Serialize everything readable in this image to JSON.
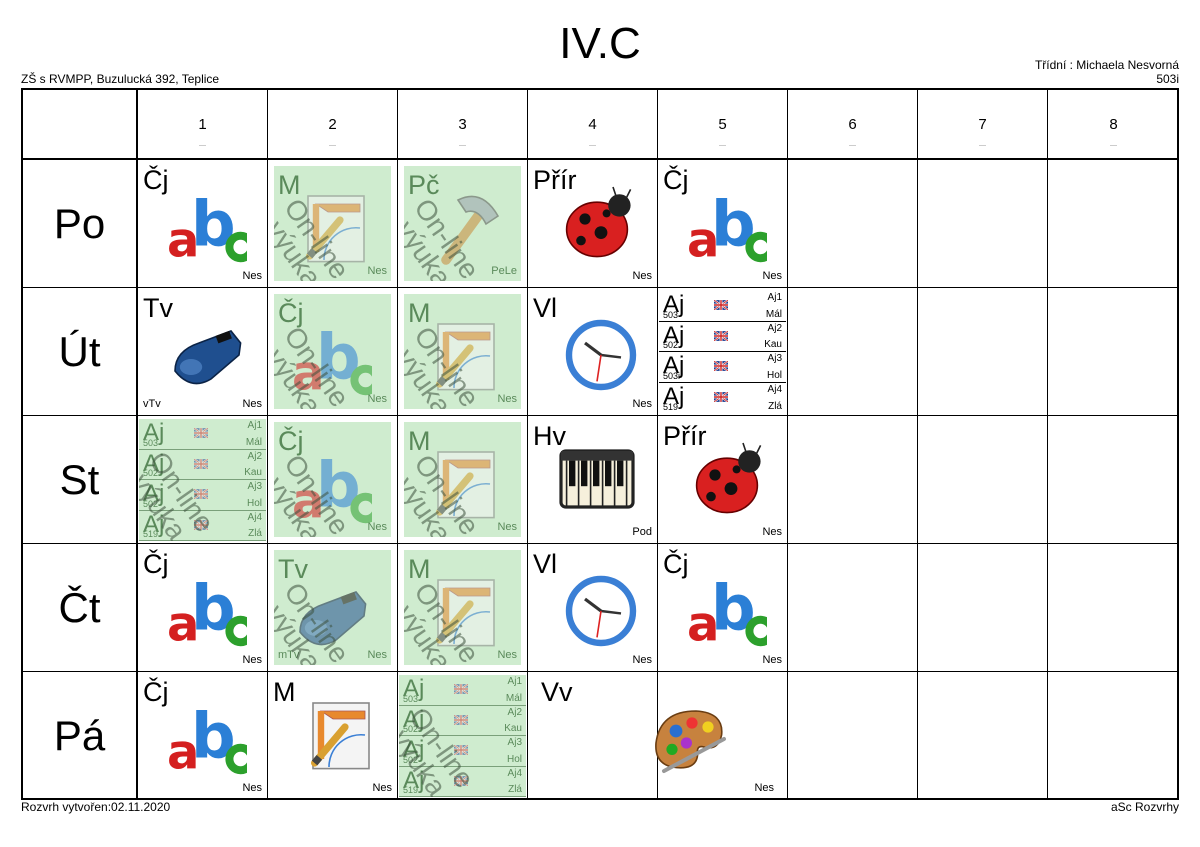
{
  "header": {
    "title": "IV.C",
    "school": "ZŠ s RVMPP, Buzulucká 392, Teplice",
    "teacher_line": "Třídní : Michaela Nesvorná",
    "room": "503i"
  },
  "footer": {
    "created": "Rozvrh vytvořen:02.11.2020",
    "software": "aSc Rozvrhy"
  },
  "periods": [
    "1",
    "2",
    "3",
    "4",
    "5",
    "6",
    "7",
    "8"
  ],
  "period_dash": "—",
  "days": [
    "Po",
    "Út",
    "St",
    "Čt",
    "Pá"
  ],
  "watermark": {
    "line1": "On-line",
    "line2": "výuka"
  },
  "lessons": {
    "po1": {
      "subject": "Čj",
      "teacher": "Nes"
    },
    "po2": {
      "subject": "M",
      "teacher": "Nes"
    },
    "po3": {
      "subject": "Pč",
      "teacher": "PeLe"
    },
    "po4": {
      "subject": "Přír",
      "teacher": "Nes"
    },
    "po5": {
      "subject": "Čj",
      "teacher": "Nes"
    },
    "ut1": {
      "subject": "Tv",
      "teacher": "Nes",
      "group": "vTv"
    },
    "ut2": {
      "subject": "Čj",
      "teacher": "Nes"
    },
    "ut3": {
      "subject": "M",
      "teacher": "Nes"
    },
    "ut4": {
      "subject": "Vl",
      "teacher": "Nes"
    },
    "st2": {
      "subject": "Čj",
      "teacher": "Nes"
    },
    "st3": {
      "subject": "M",
      "teacher": "Nes"
    },
    "st4": {
      "subject": "Hv",
      "teacher": "Pod"
    },
    "st5": {
      "subject": "Přír",
      "teacher": "Nes"
    },
    "ct1": {
      "subject": "Čj",
      "teacher": "Nes"
    },
    "ct2": {
      "subject": "Tv",
      "teacher": "Nes",
      "group": "mTv"
    },
    "ct3": {
      "subject": "M",
      "teacher": "Nes"
    },
    "ct4": {
      "subject": "Vl",
      "teacher": "Nes"
    },
    "ct5": {
      "subject": "Čj",
      "teacher": "Nes"
    },
    "pa1": {
      "subject": "Čj",
      "teacher": "Nes"
    },
    "pa2": {
      "subject": "M",
      "teacher": "Nes"
    },
    "pa45": {
      "subject": "Vv",
      "teacher": "Nes"
    }
  },
  "split_lessons": {
    "ut5": [
      {
        "subject": "Aj",
        "room": "503",
        "group": "Aj1",
        "teacher": "Mál"
      },
      {
        "subject": "Aj",
        "room": "502",
        "group": "Aj2",
        "teacher": "Kau"
      },
      {
        "subject": "Aj",
        "room": "503i",
        "group": "Aj3",
        "teacher": "Hol"
      },
      {
        "subject": "Aj",
        "room": "519",
        "group": "Aj4",
        "teacher": "Zlá"
      }
    ],
    "st1": [
      {
        "subject": "Aj",
        "room": "503",
        "group": "Aj1",
        "teacher": "Mál"
      },
      {
        "subject": "Aj",
        "room": "502",
        "group": "Aj2",
        "teacher": "Kau"
      },
      {
        "subject": "Aj",
        "room": "502",
        "group": "Aj3",
        "teacher": "Hol"
      },
      {
        "subject": "Aj",
        "room": "519",
        "group": "Aj4",
        "teacher": "Zlá"
      }
    ],
    "pa3": [
      {
        "subject": "Aj",
        "room": "503",
        "group": "Aj1",
        "teacher": "Mál"
      },
      {
        "subject": "Aj",
        "room": "502",
        "group": "Aj2",
        "teacher": "Kau"
      },
      {
        "subject": "Aj",
        "room": "502",
        "group": "Aj3",
        "teacher": "Hol"
      },
      {
        "subject": "Aj",
        "room": "519",
        "group": "Aj4",
        "teacher": "Zlá"
      }
    ]
  },
  "icons": {
    "cj": "abc-letters-icon",
    "m": "geometry-tools-icon",
    "pc": "hammer-icon",
    "prir": "ladybug-icon",
    "tv": "whistle-icon",
    "vl": "clock-icon",
    "hv": "piano-keys-icon",
    "vv": "paint-palette-icon",
    "aj": "uk-flag-icon"
  },
  "colors": {
    "online_bg": "#cfeccf",
    "online_text": "#5a8a5a"
  }
}
